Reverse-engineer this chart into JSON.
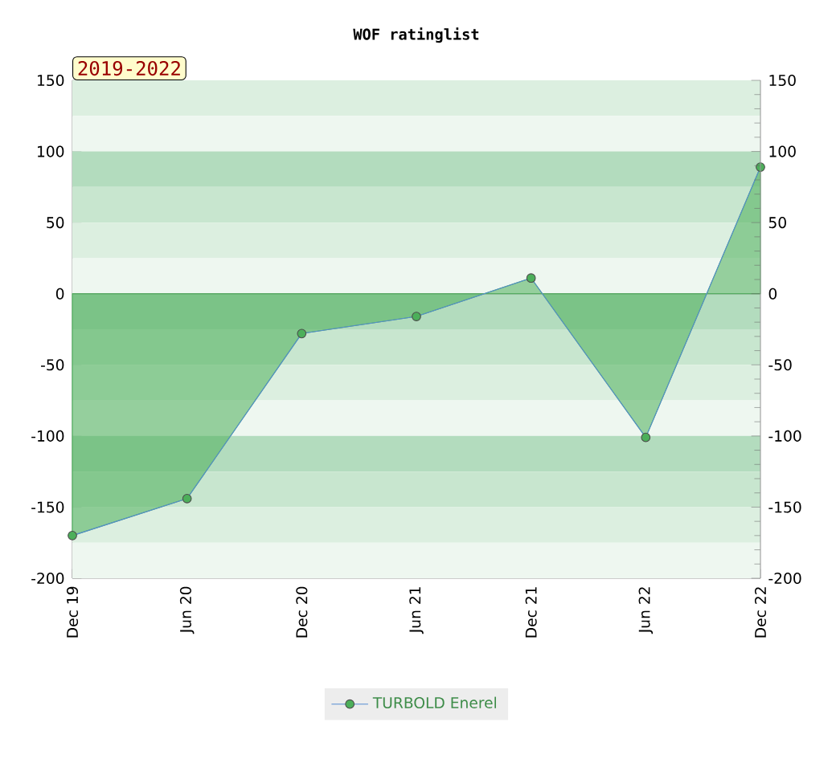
{
  "chart_data": {
    "type": "area",
    "title": "WOF ratinglist",
    "annotations": [
      "2019-2022"
    ],
    "categories": [
      "Dec 19",
      "Jun 20",
      "Dec 20",
      "Jun 21",
      "Dec 21",
      "Jun 22",
      "Dec 22"
    ],
    "series": [
      {
        "name": "TURBOLD Enerel",
        "color": "#4caf5a",
        "values": [
          -170,
          -144,
          -28,
          -16,
          11,
          -101,
          89
        ]
      }
    ],
    "ylim": [
      -200,
      150
    ],
    "yticks": [
      -200,
      -150,
      -100,
      -50,
      0,
      50,
      100,
      150
    ],
    "y2lim": [
      -200,
      150
    ],
    "y2ticks": [
      -200,
      -150,
      -100,
      -50,
      0,
      50,
      100,
      150
    ],
    "bands": [
      {
        "axis": "y",
        "from": 125,
        "to": 150,
        "color": "#dcefe0"
      },
      {
        "axis": "y",
        "from": 100,
        "to": 125,
        "color": "#eef7f0"
      },
      {
        "axis": "y",
        "from": 75,
        "to": 100,
        "color": "#b3dcbe"
      },
      {
        "axis": "y",
        "from": 50,
        "to": 75,
        "color": "#c8e6cf"
      },
      {
        "axis": "y",
        "from": 25,
        "to": 50,
        "color": "#dcefe0"
      },
      {
        "axis": "y",
        "from": 0,
        "to": 25,
        "color": "#eef7f0"
      },
      {
        "axis": "y",
        "from": -25,
        "to": 0,
        "color": "#b3dcbe"
      },
      {
        "axis": "y",
        "from": -50,
        "to": -25,
        "color": "#c8e6cf"
      },
      {
        "axis": "y",
        "from": -75,
        "to": -50,
        "color": "#dcefe0"
      },
      {
        "axis": "y",
        "from": -100,
        "to": -75,
        "color": "#eef7f0"
      },
      {
        "axis": "y",
        "from": -125,
        "to": -100,
        "color": "#b3dcbe"
      },
      {
        "axis": "y",
        "from": -150,
        "to": -125,
        "color": "#c8e6cf"
      },
      {
        "axis": "y",
        "from": -175,
        "to": -150,
        "color": "#dcefe0"
      },
      {
        "axis": "y",
        "from": -200,
        "to": -175,
        "color": "#eef7f0"
      }
    ],
    "legend": "bottom",
    "marker": "circle",
    "line_style": "solid"
  }
}
